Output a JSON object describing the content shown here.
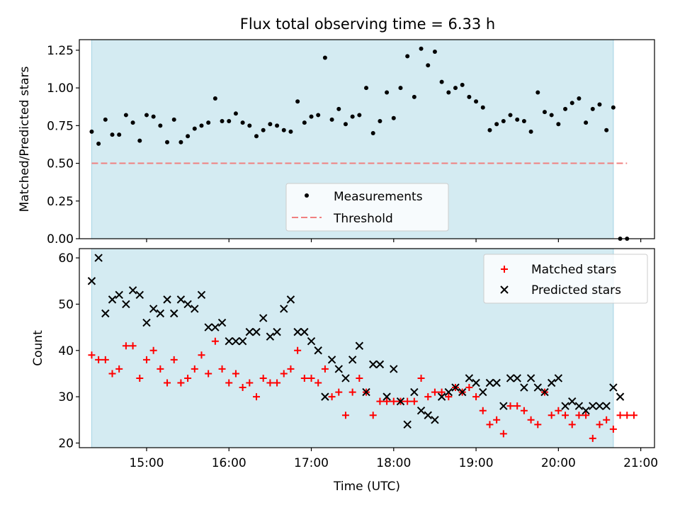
{
  "figure_title": "Flux total observing time = 6.33 h",
  "colors": {
    "shade": "#add8e6",
    "measurement": "#000000",
    "threshold": "#f08080",
    "matched": "#ff0000",
    "predicted": "#000000"
  },
  "chart_data": [
    {
      "type": "scatter",
      "title": "Flux total observing time = 6.33 h",
      "xlabel": "",
      "ylabel": "Matched/Predicted stars",
      "xlim": [
        "14:11",
        "21:10"
      ],
      "ylim": [
        0,
        1.32
      ],
      "yticks": [
        "0.00",
        "0.25",
        "0.50",
        "0.75",
        "1.00",
        "1.25"
      ],
      "shaded_interval": [
        "14:20",
        "20:40"
      ],
      "threshold": {
        "value": 0.5,
        "x_range": [
          "14:20",
          "20:50"
        ]
      },
      "legend": {
        "position": "bottom-center",
        "entries": [
          "Measurements",
          "Threshold"
        ]
      },
      "series": [
        {
          "name": "Measurements",
          "marker": "dot",
          "points": [
            [
              "14:20",
              0.71
            ],
            [
              "14:25",
              0.63
            ],
            [
              "14:30",
              0.79
            ],
            [
              "14:35",
              0.69
            ],
            [
              "14:40",
              0.69
            ],
            [
              "14:45",
              0.82
            ],
            [
              "14:50",
              0.77
            ],
            [
              "14:55",
              0.65
            ],
            [
              "15:00",
              0.82
            ],
            [
              "15:05",
              0.81
            ],
            [
              "15:10",
              0.75
            ],
            [
              "15:15",
              0.64
            ],
            [
              "15:20",
              0.79
            ],
            [
              "15:25",
              0.64
            ],
            [
              "15:30",
              0.68
            ],
            [
              "15:35",
              0.73
            ],
            [
              "15:40",
              0.75
            ],
            [
              "15:45",
              0.77
            ],
            [
              "15:50",
              0.93
            ],
            [
              "15:55",
              0.78
            ],
            [
              "16:00",
              0.78
            ],
            [
              "16:05",
              0.83
            ],
            [
              "16:10",
              0.77
            ],
            [
              "16:15",
              0.75
            ],
            [
              "16:20",
              0.68
            ],
            [
              "16:25",
              0.72
            ],
            [
              "16:30",
              0.76
            ],
            [
              "16:35",
              0.75
            ],
            [
              "16:40",
              0.72
            ],
            [
              "16:45",
              0.71
            ],
            [
              "16:50",
              0.91
            ],
            [
              "16:55",
              0.77
            ],
            [
              "17:00",
              0.81
            ],
            [
              "17:05",
              0.82
            ],
            [
              "17:10",
              1.2
            ],
            [
              "17:15",
              0.79
            ],
            [
              "17:20",
              0.86
            ],
            [
              "17:25",
              0.76
            ],
            [
              "17:30",
              0.81
            ],
            [
              "17:35",
              0.82
            ],
            [
              "17:40",
              1.0
            ],
            [
              "17:45",
              0.7
            ],
            [
              "17:50",
              0.78
            ],
            [
              "17:55",
              0.97
            ],
            [
              "18:00",
              0.8
            ],
            [
              "18:05",
              1.0
            ],
            [
              "18:10",
              1.21
            ],
            [
              "18:15",
              0.94
            ],
            [
              "18:20",
              1.26
            ],
            [
              "18:25",
              1.15
            ],
            [
              "18:30",
              1.24
            ],
            [
              "18:35",
              1.04
            ],
            [
              "18:40",
              0.97
            ],
            [
              "18:45",
              1.0
            ],
            [
              "18:50",
              1.02
            ],
            [
              "18:55",
              0.94
            ],
            [
              "19:00",
              0.91
            ],
            [
              "19:05",
              0.87
            ],
            [
              "19:10",
              0.72
            ],
            [
              "19:15",
              0.76
            ],
            [
              "19:20",
              0.78
            ],
            [
              "19:25",
              0.82
            ],
            [
              "19:30",
              0.79
            ],
            [
              "19:35",
              0.78
            ],
            [
              "19:40",
              0.71
            ],
            [
              "19:45",
              0.97
            ],
            [
              "19:50",
              0.84
            ],
            [
              "19:55",
              0.82
            ],
            [
              "20:00",
              0.76
            ],
            [
              "20:05",
              0.86
            ],
            [
              "20:10",
              0.9
            ],
            [
              "20:15",
              0.93
            ],
            [
              "20:20",
              0.77
            ],
            [
              "20:25",
              0.86
            ],
            [
              "20:30",
              0.89
            ],
            [
              "20:35",
              0.72
            ],
            [
              "20:40",
              0.87
            ],
            [
              "20:45",
              0.0
            ],
            [
              "20:50",
              0.0
            ]
          ]
        }
      ]
    },
    {
      "type": "scatter",
      "title": "",
      "xlabel": "Time (UTC)",
      "ylabel": "Count",
      "xlim": [
        "14:11",
        "21:10"
      ],
      "ylim": [
        19,
        62
      ],
      "yticks": [
        "20",
        "30",
        "40",
        "50",
        "60"
      ],
      "xticks": [
        "15:00",
        "16:00",
        "17:00",
        "18:00",
        "19:00",
        "20:00",
        "21:00"
      ],
      "shaded_interval": [
        "14:20",
        "20:40"
      ],
      "legend": {
        "position": "top-right",
        "entries": [
          "Matched stars",
          "Predicted stars"
        ]
      },
      "series": [
        {
          "name": "Matched stars",
          "marker": "plus",
          "points": [
            [
              "14:20",
              39
            ],
            [
              "14:25",
              38
            ],
            [
              "14:30",
              38
            ],
            [
              "14:35",
              35
            ],
            [
              "14:40",
              36
            ],
            [
              "14:45",
              41
            ],
            [
              "14:50",
              41
            ],
            [
              "14:55",
              34
            ],
            [
              "15:00",
              38
            ],
            [
              "15:05",
              40
            ],
            [
              "15:10",
              36
            ],
            [
              "15:15",
              33
            ],
            [
              "15:20",
              38
            ],
            [
              "15:25",
              33
            ],
            [
              "15:30",
              34
            ],
            [
              "15:35",
              36
            ],
            [
              "15:40",
              39
            ],
            [
              "15:45",
              35
            ],
            [
              "15:50",
              42
            ],
            [
              "15:55",
              36
            ],
            [
              "16:00",
              33
            ],
            [
              "16:05",
              35
            ],
            [
              "16:10",
              32
            ],
            [
              "16:15",
              33
            ],
            [
              "16:20",
              30
            ],
            [
              "16:25",
              34
            ],
            [
              "16:30",
              33
            ],
            [
              "16:35",
              33
            ],
            [
              "16:40",
              35
            ],
            [
              "16:45",
              36
            ],
            [
              "16:50",
              40
            ],
            [
              "16:55",
              34
            ],
            [
              "17:00",
              34
            ],
            [
              "17:05",
              33
            ],
            [
              "17:10",
              36
            ],
            [
              "17:15",
              30
            ],
            [
              "17:20",
              31
            ],
            [
              "17:25",
              26
            ],
            [
              "17:30",
              31
            ],
            [
              "17:35",
              34
            ],
            [
              "17:40",
              31
            ],
            [
              "17:45",
              26
            ],
            [
              "17:50",
              29
            ],
            [
              "17:55",
              29
            ],
            [
              "18:00",
              29
            ],
            [
              "18:05",
              29
            ],
            [
              "18:10",
              29
            ],
            [
              "18:15",
              29
            ],
            [
              "18:20",
              34
            ],
            [
              "18:25",
              30
            ],
            [
              "18:30",
              31
            ],
            [
              "18:35",
              31
            ],
            [
              "18:40",
              30
            ],
            [
              "18:45",
              32
            ],
            [
              "18:50",
              31
            ],
            [
              "18:55",
              32
            ],
            [
              "19:00",
              30
            ],
            [
              "19:05",
              27
            ],
            [
              "19:10",
              24
            ],
            [
              "19:15",
              25
            ],
            [
              "19:20",
              22
            ],
            [
              "19:25",
              28
            ],
            [
              "19:30",
              28
            ],
            [
              "19:35",
              27
            ],
            [
              "19:40",
              25
            ],
            [
              "19:45",
              24
            ],
            [
              "19:50",
              31
            ],
            [
              "19:55",
              26
            ],
            [
              "20:00",
              27
            ],
            [
              "20:05",
              26
            ],
            [
              "20:10",
              24
            ],
            [
              "20:15",
              26
            ],
            [
              "20:20",
              26
            ],
            [
              "20:25",
              21
            ],
            [
              "20:30",
              24
            ],
            [
              "20:35",
              25
            ],
            [
              "20:40",
              23
            ],
            [
              "20:45",
              26
            ],
            [
              "20:50",
              26
            ],
            [
              "20:55",
              26
            ]
          ]
        },
        {
          "name": "Predicted stars",
          "marker": "x",
          "points": [
            [
              "14:20",
              55
            ],
            [
              "14:25",
              60
            ],
            [
              "14:30",
              48
            ],
            [
              "14:35",
              51
            ],
            [
              "14:40",
              52
            ],
            [
              "14:45",
              50
            ],
            [
              "14:50",
              53
            ],
            [
              "14:55",
              52
            ],
            [
              "15:00",
              46
            ],
            [
              "15:05",
              49
            ],
            [
              "15:10",
              48
            ],
            [
              "15:15",
              51
            ],
            [
              "15:20",
              48
            ],
            [
              "15:25",
              51
            ],
            [
              "15:30",
              50
            ],
            [
              "15:35",
              49
            ],
            [
              "15:40",
              52
            ],
            [
              "15:45",
              45
            ],
            [
              "15:50",
              45
            ],
            [
              "15:55",
              46
            ],
            [
              "16:00",
              42
            ],
            [
              "16:05",
              42
            ],
            [
              "16:10",
              42
            ],
            [
              "16:15",
              44
            ],
            [
              "16:20",
              44
            ],
            [
              "16:25",
              47
            ],
            [
              "16:30",
              43
            ],
            [
              "16:35",
              44
            ],
            [
              "16:40",
              49
            ],
            [
              "16:45",
              51
            ],
            [
              "16:50",
              44
            ],
            [
              "16:55",
              44
            ],
            [
              "17:00",
              42
            ],
            [
              "17:05",
              40
            ],
            [
              "17:10",
              30
            ],
            [
              "17:15",
              38
            ],
            [
              "17:20",
              36
            ],
            [
              "17:25",
              34
            ],
            [
              "17:30",
              38
            ],
            [
              "17:35",
              41
            ],
            [
              "17:40",
              31
            ],
            [
              "17:45",
              37
            ],
            [
              "17:50",
              37
            ],
            [
              "17:55",
              30
            ],
            [
              "18:00",
              36
            ],
            [
              "18:05",
              29
            ],
            [
              "18:10",
              24
            ],
            [
              "18:15",
              31
            ],
            [
              "18:20",
              27
            ],
            [
              "18:25",
              26
            ],
            [
              "18:30",
              25
            ],
            [
              "18:35",
              30
            ],
            [
              "18:40",
              31
            ],
            [
              "18:45",
              32
            ],
            [
              "18:50",
              31
            ],
            [
              "18:55",
              34
            ],
            [
              "19:00",
              33
            ],
            [
              "19:05",
              31
            ],
            [
              "19:10",
              33
            ],
            [
              "19:15",
              33
            ],
            [
              "19:20",
              28
            ],
            [
              "19:25",
              34
            ],
            [
              "19:30",
              34
            ],
            [
              "19:35",
              32
            ],
            [
              "19:40",
              34
            ],
            [
              "19:45",
              32
            ],
            [
              "19:50",
              31
            ],
            [
              "19:55",
              33
            ],
            [
              "20:00",
              34
            ],
            [
              "20:05",
              28
            ],
            [
              "20:10",
              29
            ],
            [
              "20:15",
              28
            ],
            [
              "20:20",
              27
            ],
            [
              "20:25",
              28
            ],
            [
              "20:30",
              28
            ],
            [
              "20:35",
              28
            ],
            [
              "20:40",
              32
            ],
            [
              "20:45",
              30
            ]
          ]
        }
      ]
    }
  ]
}
